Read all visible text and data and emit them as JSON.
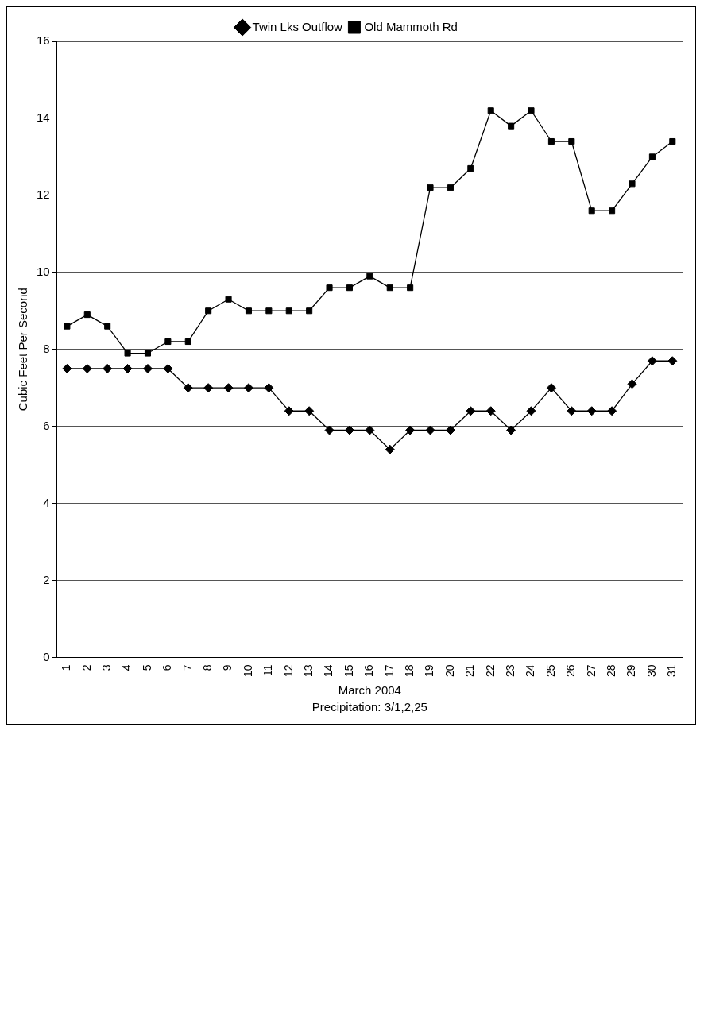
{
  "chart_data": {
    "type": "line",
    "xlabel": "March 2004",
    "ylabel": "Cubic Feet Per Second",
    "annotations": [
      "Precipitation: 3/1,2,25"
    ],
    "categories": [
      "1",
      "2",
      "3",
      "4",
      "5",
      "6",
      "7",
      "8",
      "9",
      "10",
      "11",
      "12",
      "13",
      "14",
      "15",
      "16",
      "17",
      "18",
      "19",
      "20",
      "21",
      "22",
      "23",
      "24",
      "25",
      "26",
      "27",
      "28",
      "29",
      "30",
      "31"
    ],
    "series": [
      {
        "name": "Twin Lks Outflow",
        "color": "#000000",
        "marker": "diamond",
        "values": [
          7.5,
          7.5,
          7.5,
          7.5,
          7.5,
          7.5,
          7.0,
          7.0,
          7.0,
          7.0,
          7.0,
          6.4,
          6.4,
          5.9,
          5.9,
          5.9,
          5.4,
          5.9,
          5.9,
          5.9,
          6.4,
          6.4,
          5.9,
          6.4,
          7.0,
          6.4,
          6.4,
          6.4,
          7.1,
          7.7,
          7.7
        ]
      },
      {
        "name": "Old Mammoth Rd",
        "color": "#000000",
        "marker": "square",
        "values": [
          8.6,
          8.9,
          8.6,
          7.9,
          7.9,
          8.2,
          8.2,
          9.0,
          9.3,
          9.0,
          9.0,
          9.0,
          9.0,
          9.6,
          9.6,
          9.9,
          9.6,
          9.6,
          12.2,
          12.2,
          12.7,
          14.2,
          13.8,
          14.2,
          13.4,
          13.4,
          11.6,
          11.6,
          12.3,
          13.0,
          13.4
        ]
      }
    ],
    "ylim": [
      0,
      16
    ],
    "yticks": [
      0,
      2,
      4,
      6,
      8,
      10,
      12,
      14,
      16
    ],
    "grid": "y",
    "legend": "top",
    "line_style": "solid"
  }
}
